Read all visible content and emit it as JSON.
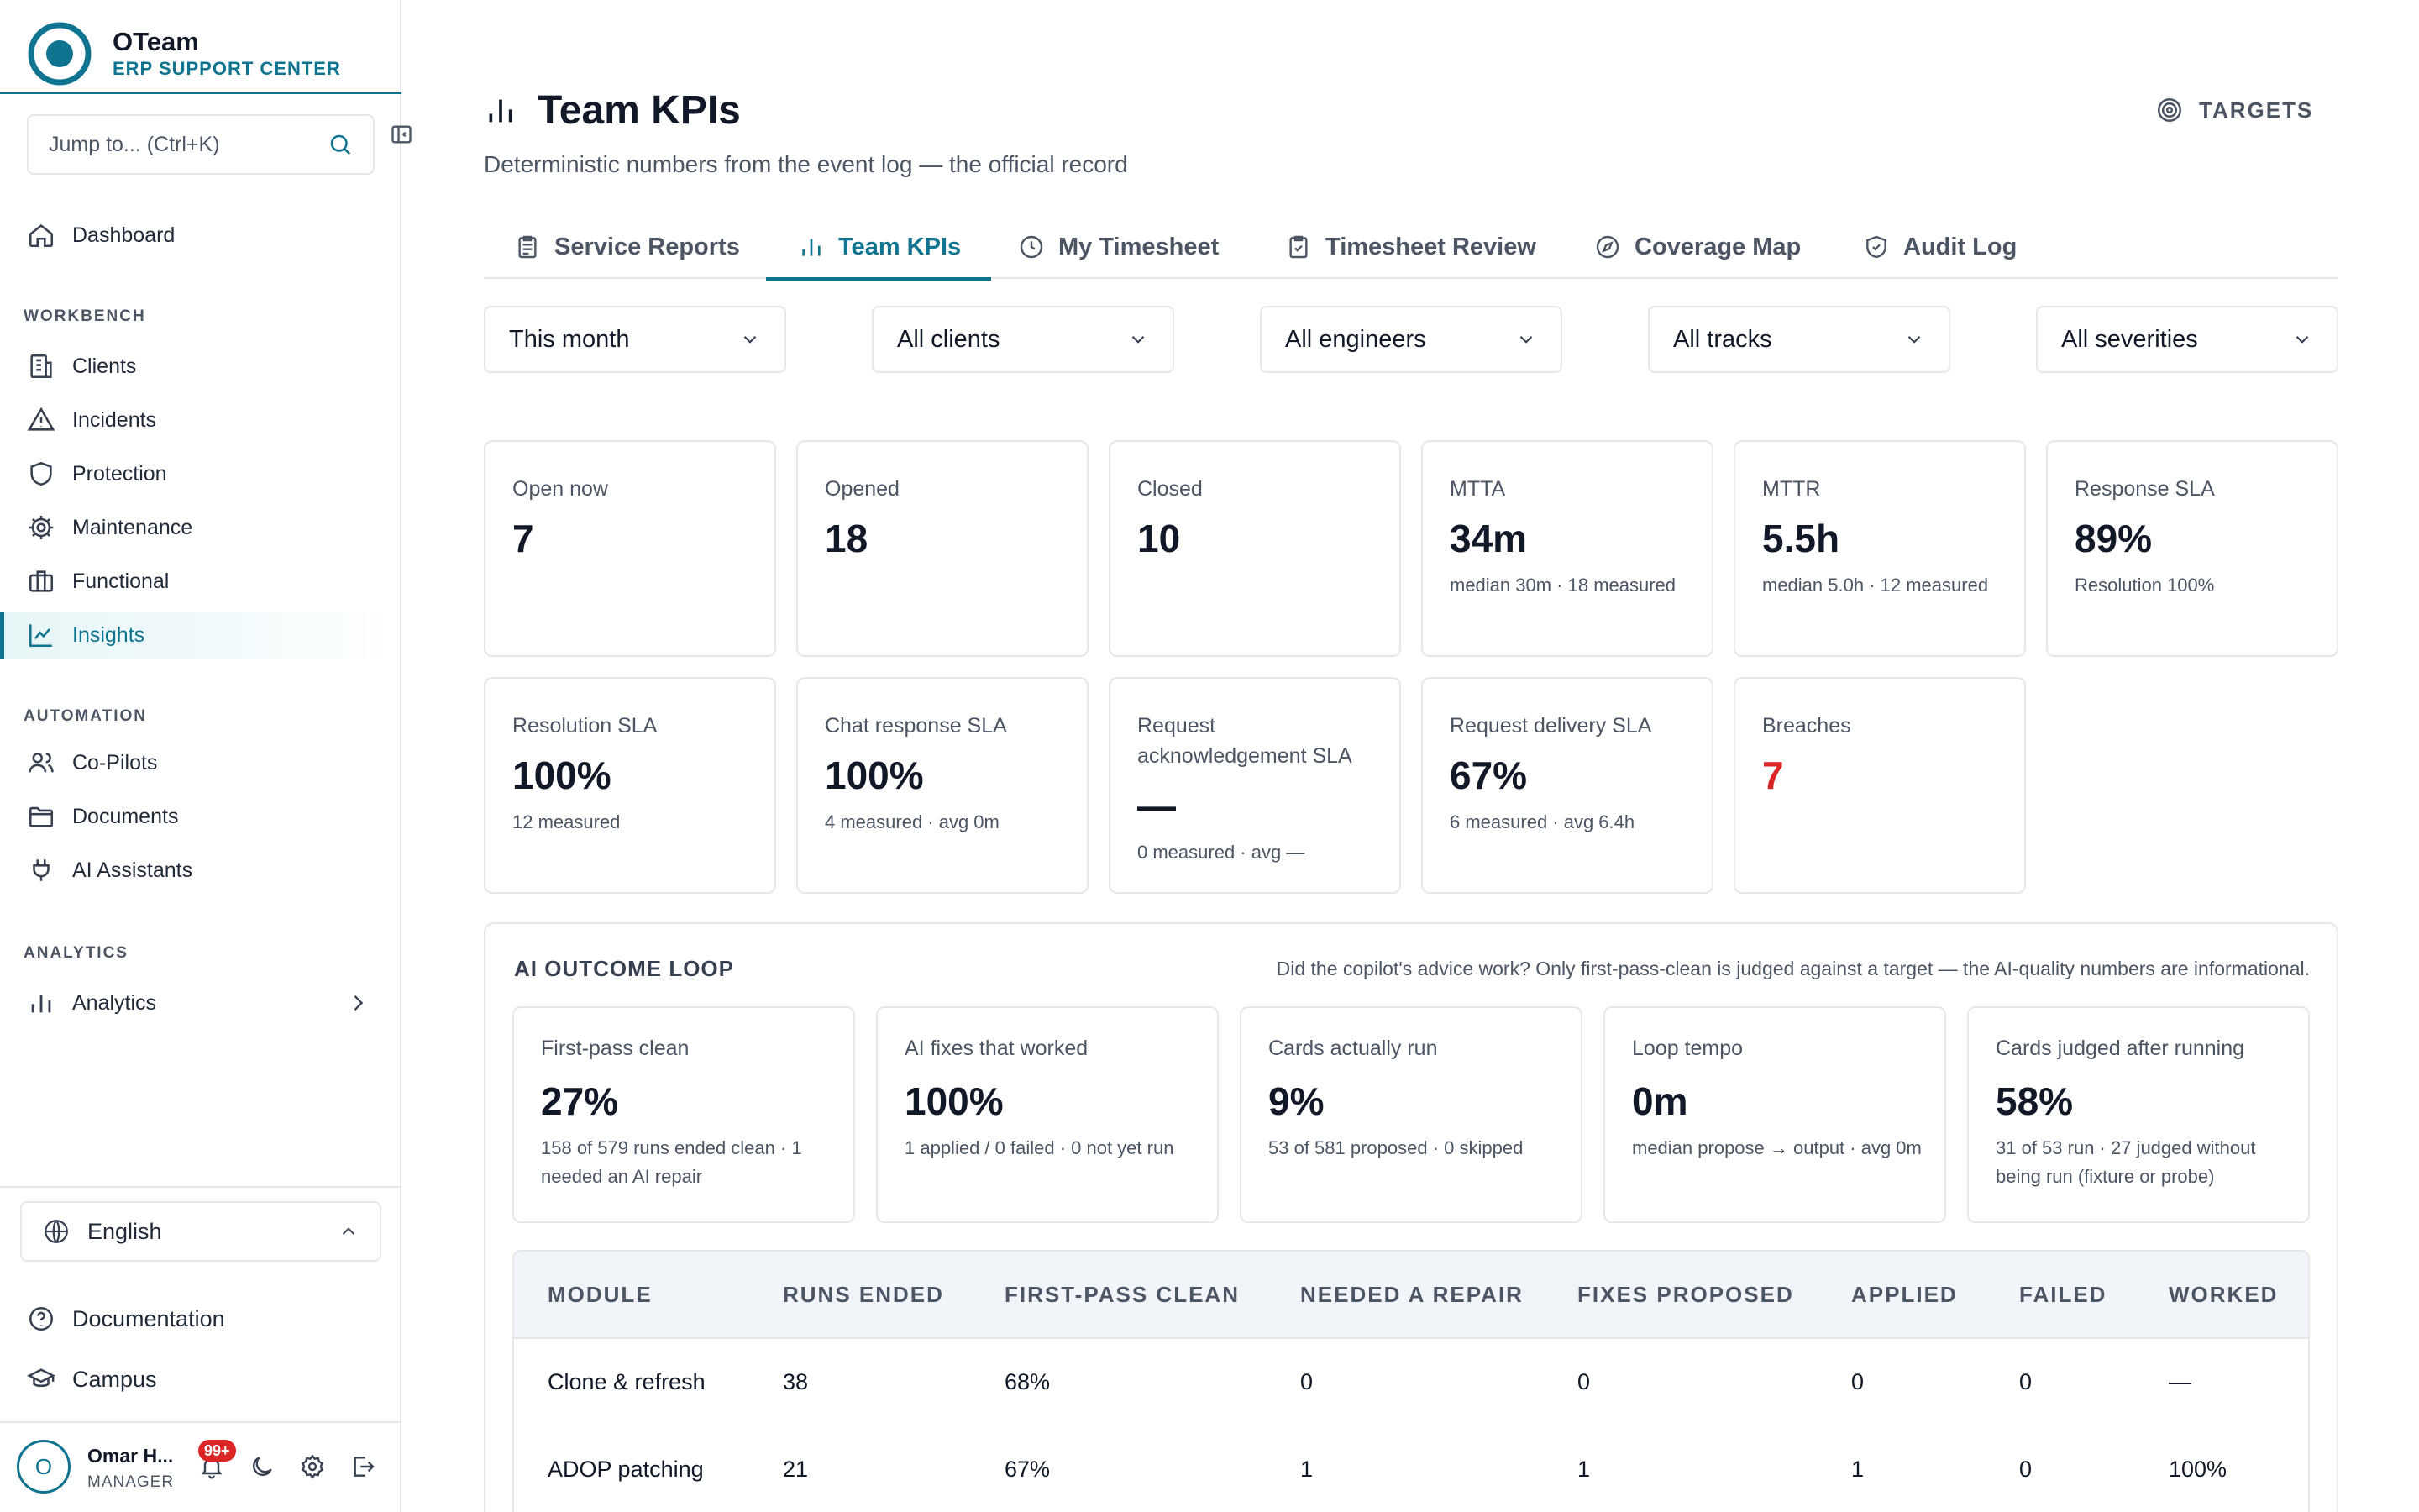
{
  "app": {
    "name": "OTeam",
    "subtitle": "ERP SUPPORT CENTER"
  },
  "sidebar": {
    "search_placeholder": "Jump to... (Ctrl+K)",
    "dashboard": "Dashboard",
    "sections": {
      "workbench": "WORKBENCH",
      "automation": "AUTOMATION",
      "analytics": "ANALYTICS"
    },
    "workbench_items": [
      "Clients",
      "Incidents",
      "Protection",
      "Maintenance",
      "Functional",
      "Insights"
    ],
    "automation_items": [
      "Co-Pilots",
      "Documents",
      "AI Assistants"
    ],
    "analytics_item": "Analytics",
    "language": "English",
    "documentation": "Documentation",
    "campus": "Campus",
    "user": {
      "initial": "O",
      "name": "Omar H...",
      "role": "MANAGER",
      "notifications": "99+"
    }
  },
  "page": {
    "title": "Team KPIs",
    "subtitle": "Deterministic numbers from the event log — the official record",
    "targets": "TARGETS"
  },
  "tabs": [
    "Service Reports",
    "Team KPIs",
    "My Timesheet",
    "Timesheet Review",
    "Coverage Map",
    "Audit Log"
  ],
  "filters": [
    "This month",
    "All clients",
    "All engineers",
    "All tracks",
    "All severities"
  ],
  "kpis": [
    {
      "label": "Open now",
      "value": "7",
      "note": ""
    },
    {
      "label": "Opened",
      "value": "18",
      "note": ""
    },
    {
      "label": "Closed",
      "value": "10",
      "note": ""
    },
    {
      "label": "MTTA",
      "value": "34m",
      "note": "median 30m · 18 measured"
    },
    {
      "label": "MTTR",
      "value": "5.5h",
      "note": "median 5.0h · 12 measured"
    },
    {
      "label": "Response SLA",
      "value": "89%",
      "note": "Resolution 100%"
    },
    {
      "label": "Resolution SLA",
      "value": "100%",
      "note": "12 measured"
    },
    {
      "label": "Chat response SLA",
      "value": "100%",
      "note": "4 measured · avg 0m"
    },
    {
      "label": "Request acknowledgement SLA",
      "value": "—",
      "note": "0 measured · avg —"
    },
    {
      "label": "Request delivery SLA",
      "value": "67%",
      "note": "6 measured · avg 6.4h"
    },
    {
      "label": "Breaches",
      "value": "7",
      "note": ""
    }
  ],
  "ai_loop": {
    "title": "AI OUTCOME LOOP",
    "description": "Did the copilot's advice work? Only first-pass-clean is judged against a target — the AI-quality numbers are informational.",
    "cards": [
      {
        "label": "First-pass clean",
        "value": "27%",
        "note": "158 of 579 runs ended clean · 1 needed an AI repair"
      },
      {
        "label": "AI fixes that worked",
        "value": "100%",
        "note": "1 applied / 0 failed · 0 not yet run"
      },
      {
        "label": "Cards actually run",
        "value": "9%",
        "note": "53 of 581 proposed · 0 skipped"
      },
      {
        "label": "Loop tempo",
        "value": "0m",
        "note": "median propose → output · avg 0m"
      },
      {
        "label": "Cards judged after running",
        "value": "58%",
        "note": "31 of 53 run · 27 judged without being run (fixture or probe)"
      }
    ],
    "table": {
      "columns": [
        "MODULE",
        "RUNS ENDED",
        "FIRST-PASS CLEAN",
        "NEEDED A REPAIR",
        "FIXES PROPOSED",
        "APPLIED",
        "FAILED",
        "WORKED"
      ],
      "rows": [
        [
          "Clone & refresh",
          "38",
          "68%",
          "0",
          "0",
          "0",
          "0",
          "—"
        ],
        [
          "ADOP patching",
          "21",
          "67%",
          "1",
          "1",
          "1",
          "0",
          "100%"
        ]
      ]
    }
  },
  "colors": {
    "accent": "#0e7490",
    "danger": "#dc2626",
    "border": "#e5e7eb"
  }
}
